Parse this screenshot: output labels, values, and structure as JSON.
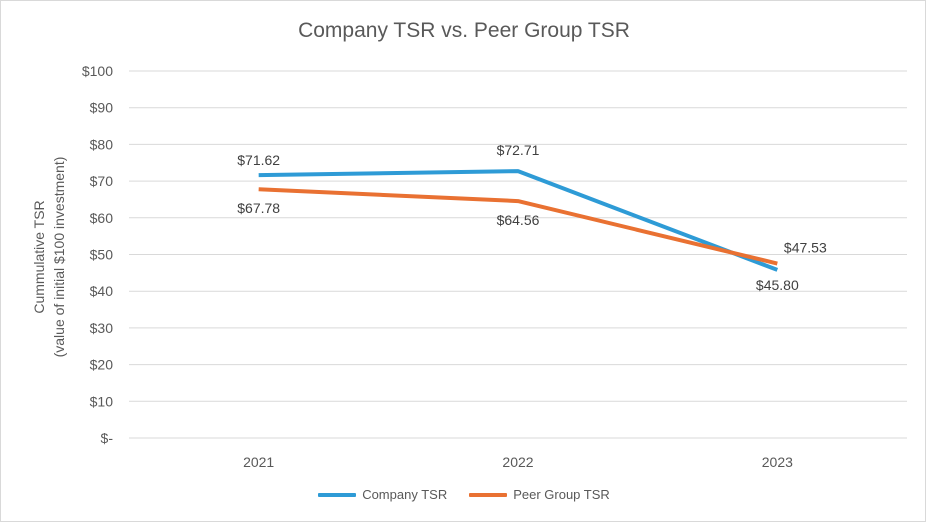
{
  "chart_data": {
    "type": "line",
    "title": "Company TSR vs. Peer Group TSR",
    "ylabel_line1": "Cummulative TSR",
    "ylabel_line2": "(value of initial $100 investment)",
    "xlabel": "",
    "categories": [
      "2021",
      "2022",
      "2023"
    ],
    "ylim": [
      0,
      100
    ],
    "yticks": [
      0,
      10,
      20,
      30,
      40,
      50,
      60,
      70,
      80,
      90,
      100
    ],
    "ytick_labels": [
      "$-",
      "$10",
      "$20",
      "$30",
      "$40",
      "$50",
      "$60",
      "$70",
      "$80",
      "$90",
      "$100"
    ],
    "grid": true,
    "legend_position": "bottom",
    "series": [
      {
        "name": "Company TSR",
        "color": "#2e9bd6",
        "values": [
          71.62,
          72.71,
          45.8
        ],
        "labels": [
          "$71.62",
          "$72.71",
          "$45.80"
        ]
      },
      {
        "name": "Peer Group TSR",
        "color": "#e97132",
        "values": [
          67.78,
          64.56,
          47.53
        ],
        "labels": [
          "$67.78",
          "$64.56",
          "$47.53"
        ]
      }
    ]
  }
}
